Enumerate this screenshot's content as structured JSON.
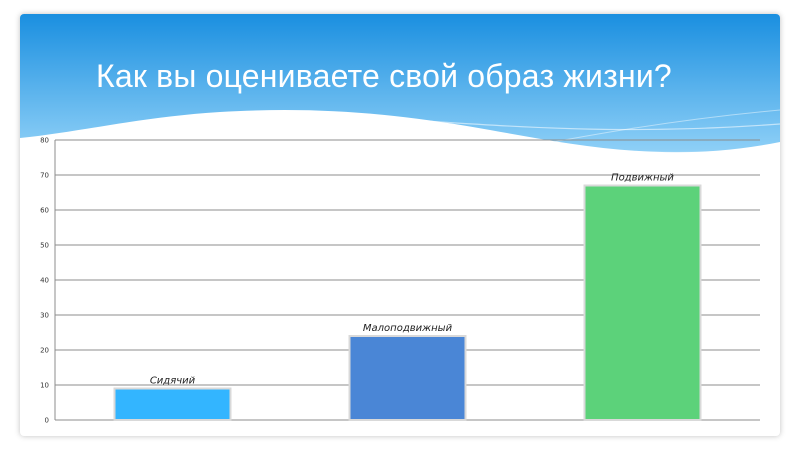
{
  "slide": {
    "title": "Как вы оцениваете свой образ жизни?"
  },
  "colors": {
    "header_top": "#1a8fe0",
    "header_bottom": "#8fd0f7",
    "grid": "#8c8c8c",
    "bar_edge": "#d9d9d9"
  },
  "chart_data": {
    "type": "bar",
    "categories": [
      "Сидячий",
      "Малоподвижный",
      "Подвижный"
    ],
    "values": [
      9,
      24,
      67
    ],
    "bar_colors": [
      "#33b5ff",
      "#4a86d6",
      "#5cd27a"
    ],
    "ylim": [
      0,
      80
    ],
    "yticks": [
      0,
      10,
      20,
      30,
      40,
      50,
      60,
      70,
      80
    ],
    "grid": true,
    "legend": "none",
    "xlabel": "",
    "ylabel": ""
  }
}
